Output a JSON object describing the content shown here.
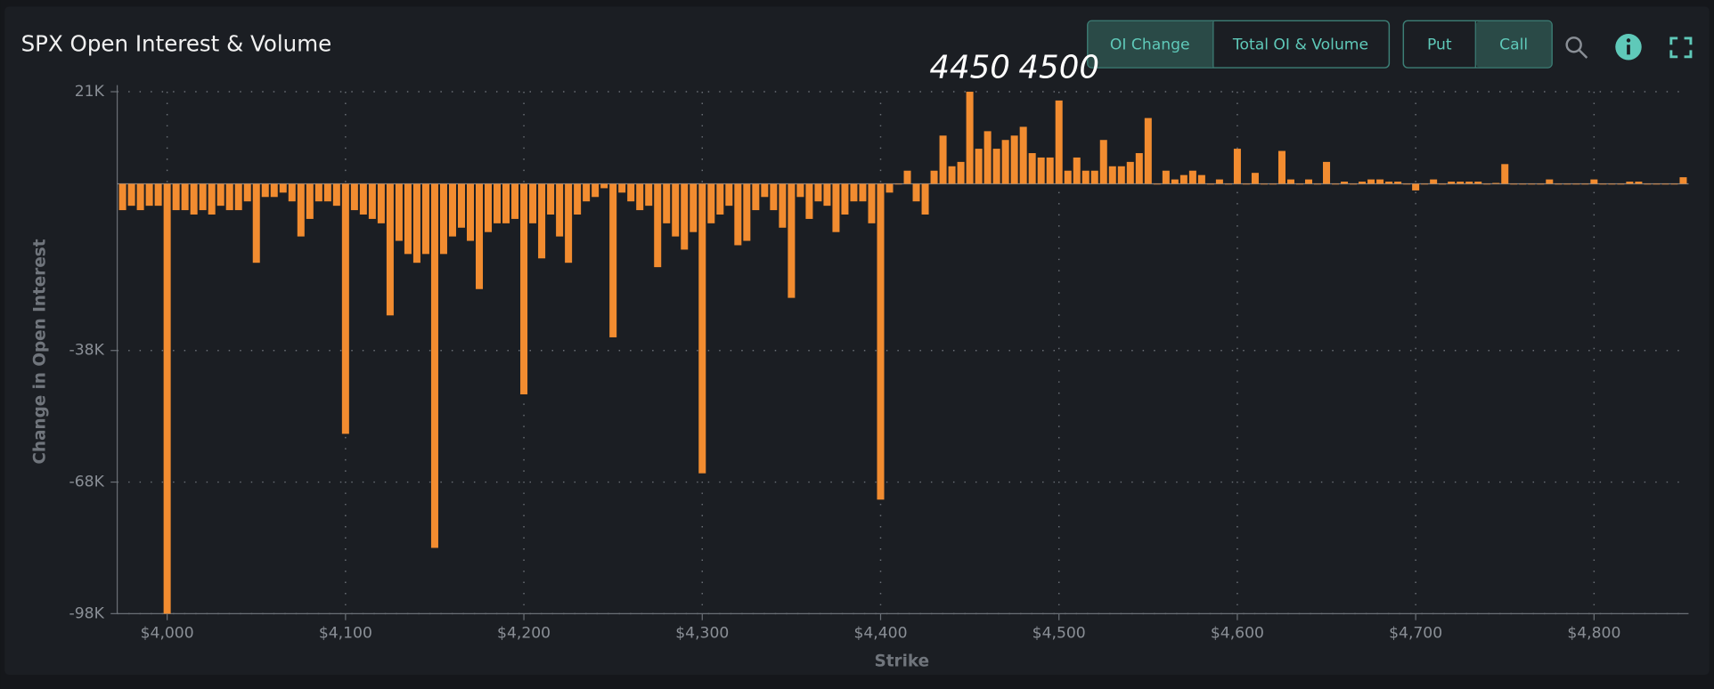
{
  "header": {
    "title": "SPX Open Interest & Volume"
  },
  "controls": {
    "view_buttons": [
      "OI Change",
      "Total OI & Volume"
    ],
    "type_buttons": [
      "Put",
      "Call"
    ]
  },
  "chart_data": {
    "type": "bar",
    "x_label": "Strike",
    "y_label": "Change in Open Interest",
    "color": "#f28c30",
    "grid": true,
    "xlim": [
      3972,
      4853
    ],
    "ylim": [
      -98000,
      21000
    ],
    "xticks": [
      {
        "value": 4000,
        "label": "$4,000"
      },
      {
        "value": 4100,
        "label": "$4,100"
      },
      {
        "value": 4200,
        "label": "$4,200"
      },
      {
        "value": 4300,
        "label": "$4,300"
      },
      {
        "value": 4400,
        "label": "$4,400"
      },
      {
        "value": 4500,
        "label": "$4,500"
      },
      {
        "value": 4600,
        "label": "$4,600"
      },
      {
        "value": 4700,
        "label": "$4,700"
      },
      {
        "value": 4800,
        "label": "$4,800"
      }
    ],
    "yticks": [
      {
        "value": 21000,
        "label": "21K"
      },
      {
        "value": -38000,
        "label": "-38K"
      },
      {
        "value": -68000,
        "label": "-68K"
      },
      {
        "value": -98000,
        "label": "-98K"
      }
    ],
    "annotations": [
      {
        "text": "4450",
        "x": 4450
      },
      {
        "text": "4500",
        "x": 4500
      }
    ],
    "x": [
      3975,
      3980,
      3985,
      3990,
      3995,
      4000,
      4005,
      4010,
      4015,
      4020,
      4025,
      4030,
      4035,
      4040,
      4045,
      4050,
      4055,
      4060,
      4065,
      4070,
      4075,
      4080,
      4085,
      4090,
      4095,
      4100,
      4105,
      4110,
      4115,
      4120,
      4125,
      4130,
      4135,
      4140,
      4145,
      4150,
      4155,
      4160,
      4165,
      4170,
      4175,
      4180,
      4185,
      4190,
      4195,
      4200,
      4205,
      4210,
      4215,
      4220,
      4225,
      4230,
      4235,
      4240,
      4245,
      4250,
      4255,
      4260,
      4265,
      4270,
      4275,
      4280,
      4285,
      4290,
      4295,
      4300,
      4305,
      4310,
      4315,
      4320,
      4325,
      4330,
      4335,
      4340,
      4345,
      4350,
      4355,
      4360,
      4365,
      4370,
      4375,
      4380,
      4385,
      4390,
      4395,
      4400,
      4405,
      4410,
      4415,
      4420,
      4425,
      4430,
      4435,
      4440,
      4445,
      4450,
      4455,
      4460,
      4465,
      4470,
      4475,
      4480,
      4485,
      4490,
      4495,
      4500,
      4505,
      4510,
      4515,
      4520,
      4525,
      4530,
      4535,
      4540,
      4545,
      4550,
      4555,
      4560,
      4565,
      4570,
      4575,
      4580,
      4585,
      4590,
      4595,
      4600,
      4605,
      4610,
      4615,
      4620,
      4625,
      4630,
      4635,
      4640,
      4645,
      4650,
      4655,
      4660,
      4665,
      4670,
      4675,
      4680,
      4685,
      4690,
      4695,
      4700,
      4705,
      4710,
      4715,
      4720,
      4725,
      4730,
      4735,
      4740,
      4745,
      4750,
      4755,
      4760,
      4765,
      4770,
      4775,
      4780,
      4785,
      4790,
      4795,
      4800,
      4805,
      4810,
      4815,
      4820,
      4825,
      4830,
      4835,
      4840,
      4845,
      4850
    ],
    "values": [
      -6000,
      -5000,
      -6000,
      -5000,
      -5000,
      -98000,
      -6000,
      -6000,
      -7000,
      -6000,
      -7000,
      -5000,
      -6000,
      -6000,
      -4000,
      -18000,
      -3000,
      -3000,
      -2000,
      -4000,
      -12000,
      -8000,
      -4000,
      -4000,
      -5000,
      -57000,
      -6000,
      -7000,
      -8000,
      -9000,
      -30000,
      -13000,
      -16000,
      -18000,
      -16000,
      -83000,
      -16000,
      -12000,
      -10000,
      -13000,
      -24000,
      -11000,
      -9000,
      -9000,
      -8000,
      -48000,
      -9000,
      -17000,
      -7000,
      -12000,
      -18000,
      -7000,
      -4000,
      -3000,
      -1000,
      -35000,
      -2000,
      -4000,
      -6000,
      -5000,
      -19000,
      -9000,
      -12000,
      -15000,
      -11000,
      -66000,
      -9000,
      -7000,
      -5000,
      -14000,
      -13000,
      -6000,
      -3000,
      -6000,
      -10000,
      -26000,
      -3000,
      -8000,
      -4000,
      -5000,
      -11000,
      -7000,
      -4000,
      -4000,
      -9000,
      -72000,
      -2000,
      0,
      3000,
      -4000,
      -7000,
      3000,
      11000,
      4000,
      5000,
      21000,
      8000,
      12000,
      8000,
      10000,
      11000,
      13000,
      7000,
      6000,
      6000,
      19000,
      3000,
      6000,
      3000,
      3000,
      10000,
      4000,
      4000,
      5000,
      7000,
      15000,
      0,
      3000,
      1000,
      2000,
      3000,
      2000,
      0,
      1000,
      0,
      8000,
      0,
      2500,
      0,
      0,
      7500,
      1000,
      0,
      1000,
      0,
      5000,
      0,
      500,
      0,
      500,
      1000,
      1000,
      500,
      500,
      0,
      -1500,
      0,
      1000,
      0,
      500,
      500,
      500,
      500,
      0,
      200,
      4500,
      0,
      0,
      0,
      0,
      1000,
      0,
      0,
      0,
      0,
      1000,
      0,
      0,
      0,
      500,
      500,
      0,
      0,
      0,
      0,
      1500
    ]
  }
}
